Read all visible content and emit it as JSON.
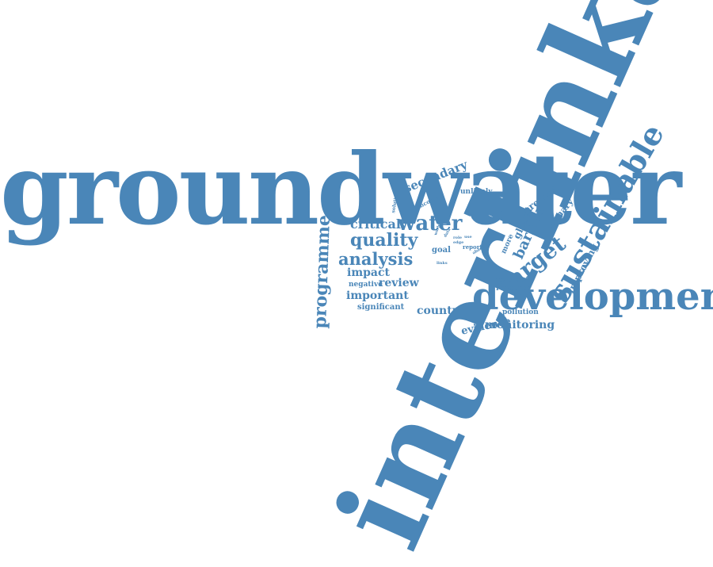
{
  "accent": "#4a86b8",
  "words": {
    "interlinkage": "interlinkage",
    "groundwater": "groundwater",
    "development": "development",
    "sustainable": "sustainable",
    "programme": "programme",
    "water": "water",
    "quality": "quality",
    "analysis": "analysis",
    "critical": "critical",
    "secondary": "secondary",
    "target": "target",
    "impact": "impact",
    "review": "review",
    "important": "important",
    "significant": "significant",
    "negative": "negative",
    "countrie": "countrie",
    "evidence": "evidence",
    "monitoring": "monitoring",
    "barrier": "barrier",
    "global": "global",
    "primary": "primary",
    "present": "present",
    "improving": "improving",
    "unlikely": "unlikely",
    "relevant": "relevant",
    "resource": "resource",
    "pollution": "pollution",
    "more": "more",
    "goal": "goal",
    "income": "income",
    "solution": "solution",
    "report": "report",
    "links": "links",
    "world": "world",
    "data": "data",
    "role": "role",
    "edge": "edge",
    "use": "use",
    "about": "about"
  }
}
